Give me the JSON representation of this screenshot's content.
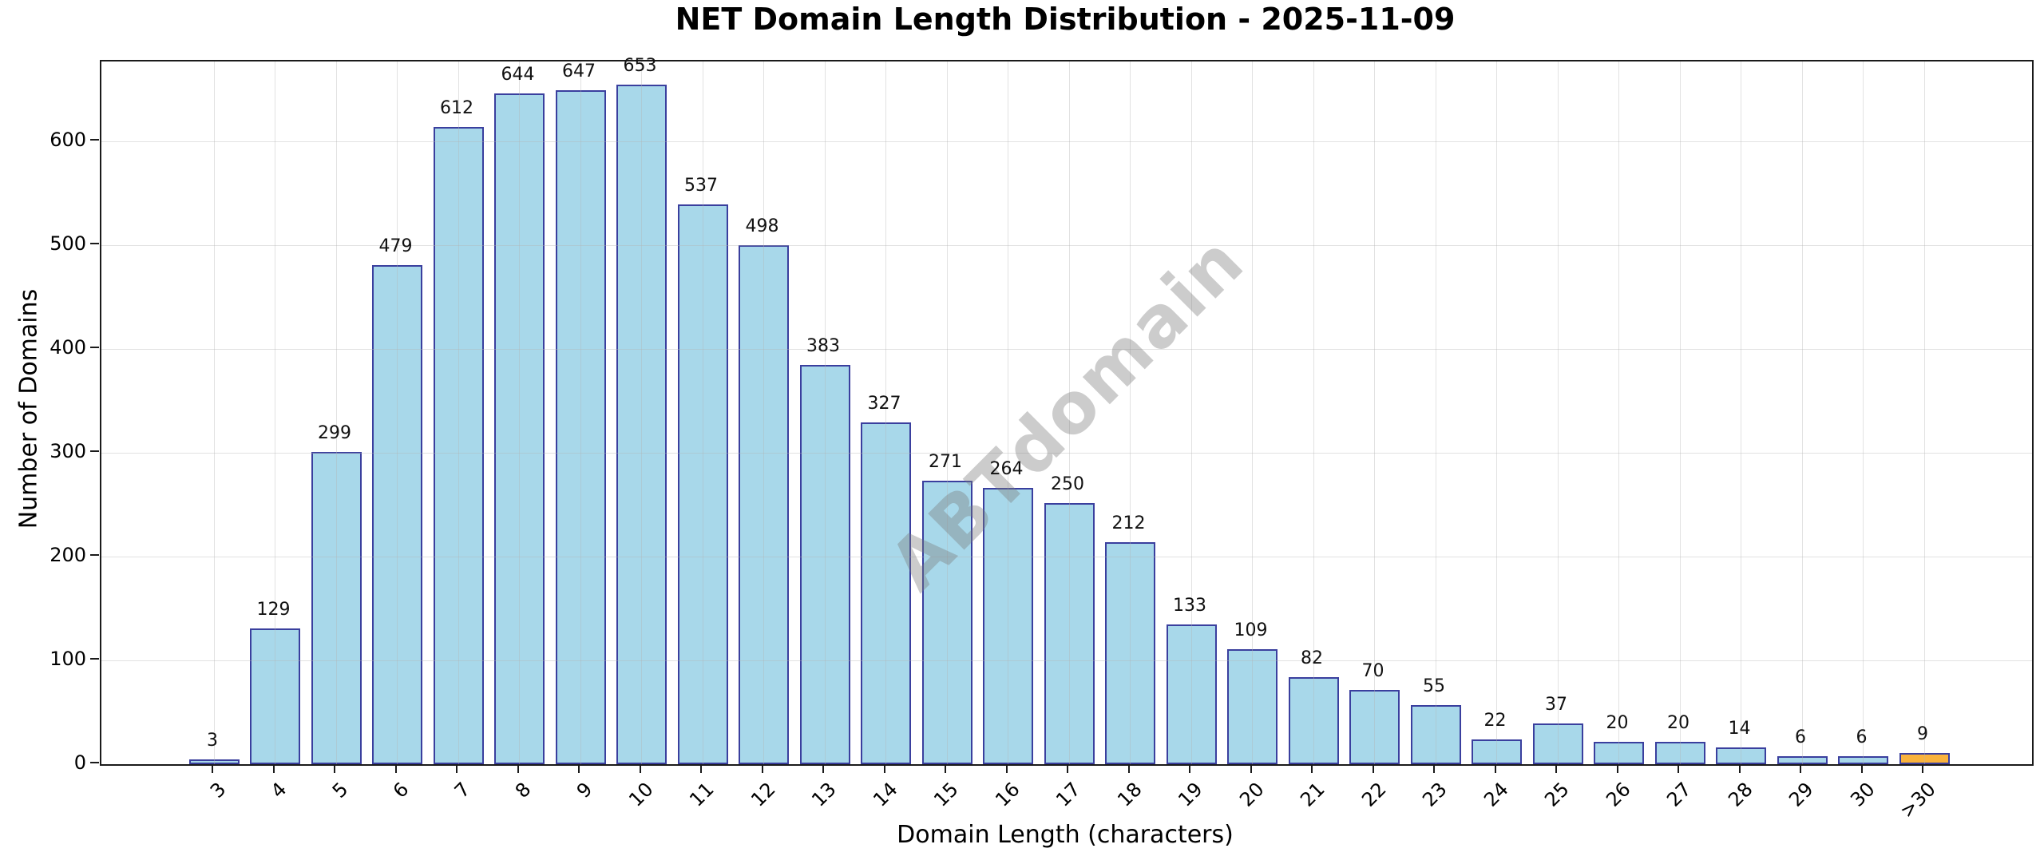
{
  "title": "NET Domain Length Distribution - 2025-11-09",
  "watermark": "ABTdomain",
  "chart_data": {
    "type": "bar",
    "title": "NET Domain Length Distribution - 2025-11-09",
    "xlabel": "Domain Length (characters)",
    "ylabel": "Number of Domains",
    "categories": [
      "3",
      "4",
      "5",
      "6",
      "7",
      "8",
      "9",
      "10",
      "11",
      "12",
      "13",
      "14",
      "15",
      "16",
      "17",
      "18",
      "19",
      "20",
      "21",
      "22",
      "23",
      "24",
      "25",
      "26",
      "27",
      "28",
      "29",
      "30",
      ">30"
    ],
    "values": [
      3,
      129,
      299,
      479,
      612,
      644,
      647,
      653,
      537,
      498,
      383,
      327,
      271,
      264,
      250,
      212,
      133,
      109,
      82,
      70,
      55,
      22,
      37,
      20,
      20,
      14,
      6,
      6,
      9
    ],
    "yticks": [
      0,
      100,
      200,
      300,
      400,
      500,
      600
    ],
    "ylim": [
      0,
      677
    ],
    "grid": true,
    "legend": "none",
    "value_labels": true,
    "colors": {
      "bar_fill": "#A8D8EA",
      "bar_edge": "#3A3F9E",
      "last_bar_fill": "#F9B23C",
      "grid": "#E6E6E6",
      "spine": "#1a1a1a",
      "watermark_gray": "#D3D3D3"
    }
  }
}
